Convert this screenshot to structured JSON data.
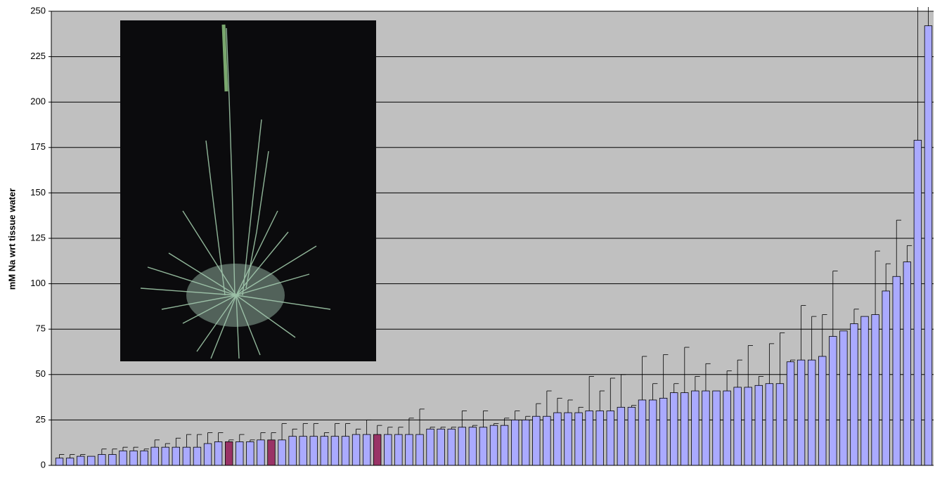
{
  "chart_data": {
    "type": "bar",
    "y_label": "mM Na wrt tissue water",
    "ylim": [
      0,
      250
    ],
    "yticks": [
      0,
      25,
      50,
      75,
      100,
      125,
      150,
      175,
      200,
      225,
      250
    ],
    "grid": true,
    "categories": [
      null,
      null,
      null,
      null,
      null,
      null,
      null,
      null,
      null,
      null,
      null,
      null,
      null,
      null,
      null,
      null,
      null,
      null,
      null,
      null,
      null,
      null,
      null,
      null,
      null,
      null,
      null,
      null,
      null,
      null,
      null,
      null,
      null,
      null,
      null,
      null,
      null,
      null,
      null,
      null,
      null,
      null,
      null,
      null,
      null,
      null,
      null,
      null,
      null,
      null,
      null,
      null,
      null,
      null,
      null,
      null,
      null,
      null,
      null,
      null,
      null,
      null,
      null,
      null,
      null,
      null,
      null,
      null,
      null,
      null,
      null,
      null,
      null,
      null,
      null,
      null,
      null,
      null,
      null,
      null,
      null,
      null,
      null
    ],
    "values": [
      4,
      4,
      5,
      5,
      6,
      6,
      8,
      8,
      8,
      10,
      10,
      10,
      10,
      10,
      12,
      13,
      13,
      13,
      13,
      14,
      14,
      14,
      16,
      16,
      16,
      16,
      16,
      16,
      17,
      17,
      17,
      17,
      17,
      17,
      17,
      20,
      20,
      20,
      21,
      21,
      21,
      22,
      22,
      25,
      25,
      27,
      27,
      29,
      29,
      29,
      30,
      30,
      30,
      32,
      32,
      36,
      36,
      37,
      40,
      40,
      41,
      41,
      41,
      41,
      43,
      43,
      44,
      45,
      45,
      57,
      58,
      58,
      60,
      71,
      74,
      78,
      82,
      83,
      96,
      104,
      112,
      179,
      242
    ],
    "errors": [
      2,
      2,
      1,
      null,
      3,
      3,
      2,
      2,
      1,
      4,
      2,
      5,
      7,
      7,
      6,
      5,
      1,
      4,
      1,
      4,
      4,
      9,
      4,
      7,
      7,
      2,
      7,
      7,
      3,
      8,
      5,
      4,
      4,
      9,
      14,
      1,
      1,
      1,
      9,
      1,
      9,
      1,
      4,
      5,
      2,
      7,
      14,
      8,
      7,
      3,
      19,
      11,
      18,
      18,
      1,
      24,
      9,
      24,
      5,
      25,
      8,
      15,
      null,
      11,
      15,
      23,
      5,
      22,
      28,
      1,
      30,
      24,
      23,
      36,
      null,
      8,
      null,
      35,
      15,
      31,
      9,
      90,
      30
    ],
    "colors": [
      "#aaaaff",
      "#aaaaff",
      "#aaaaff",
      "#aaaaff",
      "#aaaaff",
      "#aaaaff",
      "#aaaaff",
      "#aaaaff",
      "#aaaaff",
      "#aaaaff",
      "#aaaaff",
      "#aaaaff",
      "#aaaaff",
      "#aaaaff",
      "#aaaaff",
      "#aaaaff",
      "#993366",
      "#aaaaff",
      "#aaaaff",
      "#aaaaff",
      "#993366",
      "#aaaaff",
      "#aaaaff",
      "#aaaaff",
      "#aaaaff",
      "#aaaaff",
      "#aaaaff",
      "#aaaaff",
      "#aaaaff",
      "#aaaaff",
      "#993366",
      "#aaaaff",
      "#aaaaff",
      "#aaaaff",
      "#aaaaff",
      "#aaaaff",
      "#aaaaff",
      "#aaaaff",
      "#aaaaff",
      "#aaaaff",
      "#aaaaff",
      "#aaaaff",
      "#aaaaff",
      "#aaaaff",
      "#aaaaff",
      "#aaaaff",
      "#aaaaff",
      "#aaaaff",
      "#aaaaff",
      "#aaaaff",
      "#aaaaff",
      "#aaaaff",
      "#aaaaff",
      "#aaaaff",
      "#aaaaff",
      "#aaaaff",
      "#aaaaff",
      "#aaaaff",
      "#aaaaff",
      "#aaaaff",
      "#aaaaff",
      "#aaaaff",
      "#aaaaff",
      "#aaaaff",
      "#aaaaff",
      "#aaaaff",
      "#aaaaff",
      "#aaaaff",
      "#aaaaff",
      "#aaaaff",
      "#aaaaff",
      "#aaaaff",
      "#aaaaff",
      "#aaaaff",
      "#aaaaff",
      "#aaaaff",
      "#aaaaff",
      "#aaaaff",
      "#aaaaff",
      "#aaaaff",
      "#aaaaff",
      "#aaaaff",
      "#aaaaff"
    ],
    "plot_background": "#c0c0c0"
  }
}
